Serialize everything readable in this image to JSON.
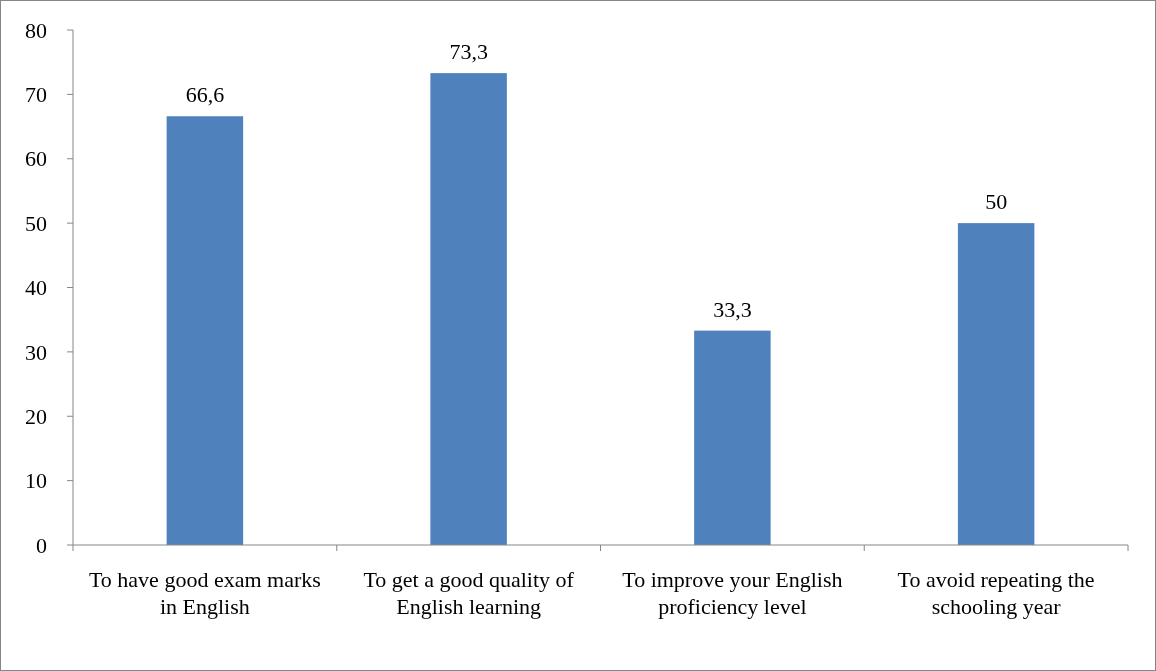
{
  "chart_data": {
    "type": "bar",
    "categories": [
      "To have good exam marks in English",
      "To get a good quality of English learning",
      "To improve your English proficiency level",
      "To avoid repeating the schooling year"
    ],
    "values": [
      66.6,
      73.3,
      33.3,
      50
    ],
    "value_labels": [
      "66,6",
      "73,3",
      "33,3",
      "50"
    ],
    "color": "#4f81bd",
    "ylim": [
      0,
      80
    ],
    "yticks": [
      0,
      10,
      20,
      30,
      40,
      50,
      60,
      70,
      80
    ],
    "grid": false
  }
}
